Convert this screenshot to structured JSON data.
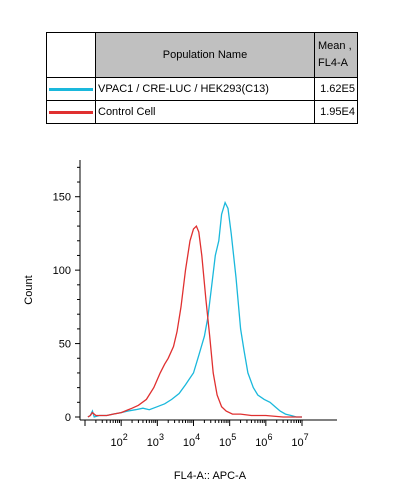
{
  "legend": {
    "header_name": "Population Name",
    "header_mean_line1": "Mean ,",
    "header_mean_line2": "FL4-A",
    "rows": [
      {
        "name": "VPAC1 / CRE-LUC / HEK293(C13)",
        "mean": "1.62E5",
        "color": "#1ab8dc"
      },
      {
        "name": "Control Cell",
        "mean": "1.95E4",
        "color": "#e03030"
      }
    ]
  },
  "chart_data": {
    "type": "line",
    "xlabel": "FL4-A:: APC-A",
    "ylabel": "Count",
    "x_scale": "log",
    "xlim": [
      10,
      10000000
    ],
    "ylim": [
      0,
      175
    ],
    "y_ticks": [
      0,
      50,
      100,
      150
    ],
    "x_ticks": [
      {
        "value": 100,
        "base": "10",
        "exp": "2"
      },
      {
        "value": 1000,
        "base": "10",
        "exp": "3"
      },
      {
        "value": 10000,
        "base": "10",
        "exp": "4"
      },
      {
        "value": 100000,
        "base": "10",
        "exp": "5"
      },
      {
        "value": 1000000,
        "base": "10",
        "exp": "6"
      },
      {
        "value": 10000000,
        "base": "10",
        "exp": "7"
      }
    ],
    "series": [
      {
        "name": "VPAC1 / CRE-LUC / HEK293(C13)",
        "color": "#1ab8dc",
        "points": [
          [
            12,
            0
          ],
          [
            14,
            1
          ],
          [
            16,
            4
          ],
          [
            18,
            0
          ],
          [
            25,
            1
          ],
          [
            40,
            1
          ],
          [
            60,
            2
          ],
          [
            100,
            3
          ],
          [
            150,
            4
          ],
          [
            250,
            5
          ],
          [
            400,
            6
          ],
          [
            600,
            5
          ],
          [
            1000,
            7
          ],
          [
            1600,
            9
          ],
          [
            2500,
            12
          ],
          [
            4000,
            16
          ],
          [
            6000,
            22
          ],
          [
            10000,
            30
          ],
          [
            14000,
            42
          ],
          [
            20000,
            55
          ],
          [
            25000,
            68
          ],
          [
            32000,
            90
          ],
          [
            40000,
            110
          ],
          [
            50000,
            120
          ],
          [
            60000,
            138
          ],
          [
            75000,
            146
          ],
          [
            90000,
            142
          ],
          [
            110000,
            125
          ],
          [
            150000,
            95
          ],
          [
            200000,
            60
          ],
          [
            250000,
            45
          ],
          [
            320000,
            30
          ],
          [
            450000,
            20
          ],
          [
            600000,
            15
          ],
          [
            900000,
            12
          ],
          [
            1300000,
            10
          ],
          [
            1800000,
            7
          ],
          [
            2500000,
            4
          ],
          [
            3500000,
            2
          ],
          [
            5000000,
            1
          ],
          [
            7000000,
            0
          ],
          [
            10000000,
            0
          ]
        ]
      },
      {
        "name": "Control Cell",
        "color": "#e03030",
        "points": [
          [
            12,
            0
          ],
          [
            14,
            1
          ],
          [
            16,
            3
          ],
          [
            20,
            1
          ],
          [
            40,
            1
          ],
          [
            60,
            2
          ],
          [
            100,
            3
          ],
          [
            200,
            6
          ],
          [
            300,
            8
          ],
          [
            500,
            12
          ],
          [
            800,
            20
          ],
          [
            1200,
            30
          ],
          [
            1600,
            36
          ],
          [
            2000,
            40
          ],
          [
            2800,
            48
          ],
          [
            3500,
            58
          ],
          [
            4500,
            75
          ],
          [
            6000,
            100
          ],
          [
            8000,
            120
          ],
          [
            10000,
            128
          ],
          [
            12000,
            130
          ],
          [
            14000,
            126
          ],
          [
            17000,
            110
          ],
          [
            22000,
            80
          ],
          [
            28000,
            55
          ],
          [
            35000,
            30
          ],
          [
            45000,
            15
          ],
          [
            60000,
            7
          ],
          [
            80000,
            4
          ],
          [
            120000,
            2
          ],
          [
            200000,
            2
          ],
          [
            400000,
            1
          ],
          [
            1000000,
            1
          ],
          [
            3000000,
            0
          ],
          [
            10000000,
            0
          ]
        ]
      }
    ]
  }
}
